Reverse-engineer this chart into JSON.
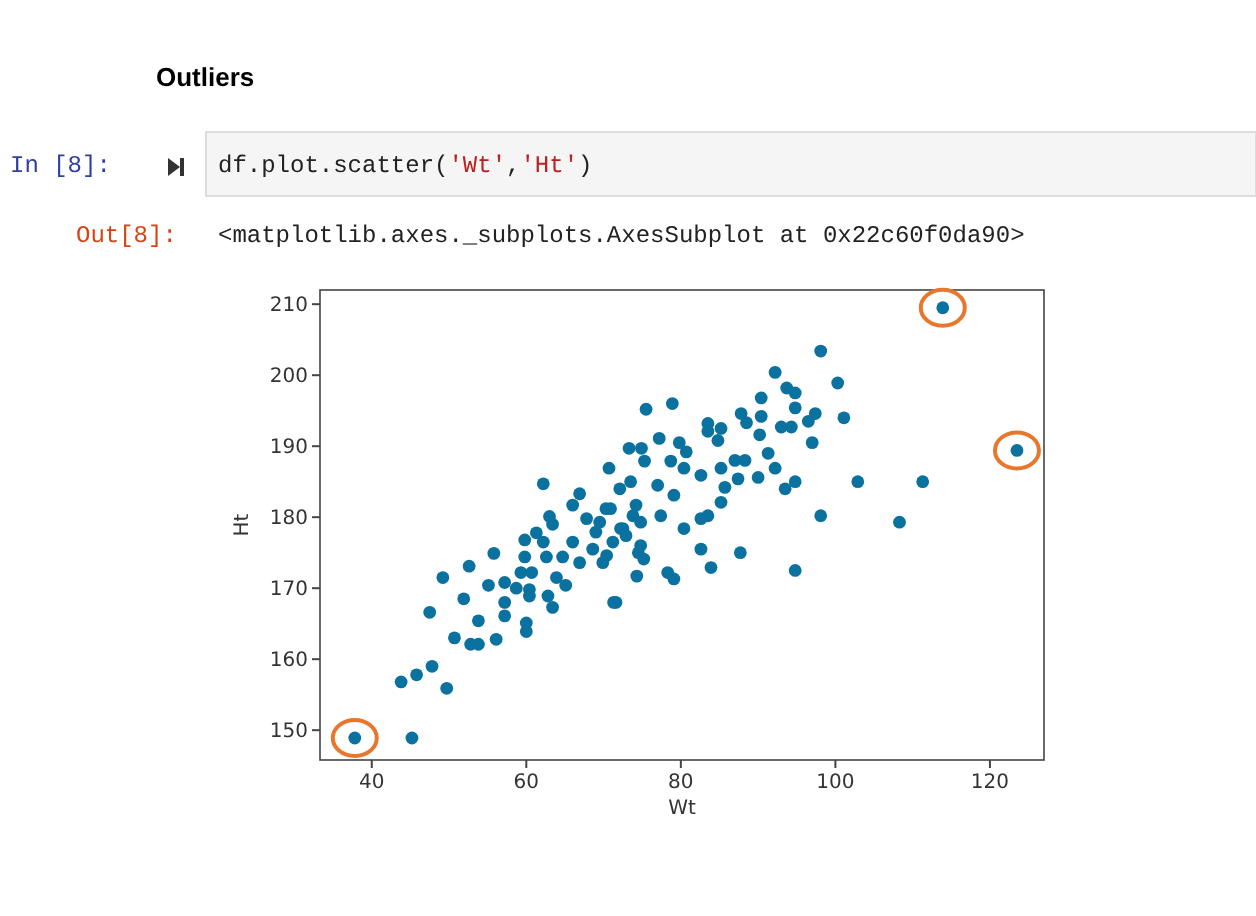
{
  "chart_data": {
    "type": "scatter",
    "title": "Outliers",
    "xlabel": "Wt",
    "ylabel": "Ht",
    "annotations": [
      "In [8]:",
      "df.plot.scatter('Wt','Ht')",
      "Out[8]:",
      "<matplotlib.axes._subplots.AxesSubplot at 0x22c60f0da90>"
    ],
    "xlim": [
      33.3,
      127
    ],
    "ylim": [
      145.8,
      212
    ],
    "xticks": [
      40,
      60,
      80,
      100,
      120
    ],
    "yticks": [
      150,
      160,
      170,
      180,
      190,
      200,
      210
    ],
    "grid": false,
    "marker": "circle",
    "series": [
      {
        "color": "#0b72a0",
        "x": [
          37.8,
          45.2,
          43.8,
          45.8,
          47.8,
          49.7,
          47.5,
          49.2,
          50.7,
          51.9,
          52.6,
          52.8,
          53.8,
          53.8,
          55.1,
          55.8,
          56.1,
          57.2,
          57.2,
          57.2,
          58.7,
          59.3,
          59.8,
          59.8,
          60,
          60,
          60.4,
          60.4,
          60.7,
          61.3,
          62.2,
          62.2,
          62.6,
          62.8,
          63,
          63.4,
          63.9,
          63.4,
          64.7,
          65.1,
          66,
          66,
          66.9,
          66.9,
          67.8,
          68.6,
          69,
          69.5,
          69.9,
          70.3,
          70.7,
          71.2,
          71.6,
          72.1,
          72.5,
          72.9,
          73.3,
          73.8,
          74.2,
          74.5,
          113.9,
          123.5,
          98.1,
          92.2,
          100.3,
          93.7,
          94.8,
          90.4,
          94.8,
          87.8,
          90.4,
          83.5,
          85.2,
          97.4,
          101.1,
          96.5,
          93,
          94.3,
          88.5,
          83.5,
          90.2,
          75.5,
          78.9,
          77.2,
          79.8,
          74.9,
          97,
          84.8,
          80.7,
          91.3,
          87,
          88.3,
          75.3,
          78.7,
          80.4,
          82.6,
          85.2,
          90,
          92.2,
          94.8,
          87.4,
          93.5,
          102.9,
          111.3,
          73.5,
          77,
          79.1,
          85.7,
          85.2,
          77.4,
          80.4,
          83.5,
          82.6,
          98.1,
          108.3,
          74.8,
          70.9,
          72.2,
          74.8,
          75.2,
          74.3,
          78.3,
          79.1,
          82.6,
          83.9,
          87.7,
          94.8,
          71.3,
          70.4
        ],
        "values": [
          148.9,
          148.9,
          156.8,
          157.8,
          159,
          155.9,
          166.6,
          171.5,
          163,
          168.5,
          173.1,
          162.1,
          162.1,
          165.4,
          170.4,
          174.9,
          162.8,
          168,
          166.1,
          170.8,
          170,
          172.2,
          176.8,
          174.4,
          165.1,
          163.9,
          169.8,
          168.9,
          172.2,
          177.8,
          184.7,
          176.5,
          174.4,
          168.9,
          180.1,
          179,
          171.5,
          167.3,
          174.4,
          170.4,
          176.5,
          181.7,
          183.3,
          173.6,
          179.8,
          175.5,
          177.9,
          179.3,
          173.6,
          181.2,
          186.9,
          176.5,
          168,
          184,
          178.4,
          177.4,
          189.7,
          180.2,
          181.7,
          175,
          209.5,
          189.4,
          203.4,
          200.4,
          198.9,
          198.2,
          197.5,
          196.8,
          195.4,
          194.6,
          194.2,
          193.2,
          192.5,
          194.6,
          194,
          193.5,
          192.7,
          192.7,
          193.3,
          192.1,
          191.6,
          195.2,
          196,
          191.1,
          190.5,
          189.7,
          190.5,
          190.8,
          189.2,
          189,
          188,
          188,
          187.9,
          187.9,
          186.9,
          185.9,
          186.9,
          185.6,
          186.9,
          185,
          185.4,
          184,
          185,
          185,
          185,
          184.5,
          183.1,
          184.2,
          182.1,
          180.2,
          178.4,
          180.2,
          179.8,
          180.2,
          179.3,
          179.3,
          181.2,
          178.4,
          176,
          174.1,
          171.7,
          172.2,
          171.3,
          175.5,
          172.9,
          175,
          172.5,
          168,
          174.6
        ]
      }
    ]
  }
}
